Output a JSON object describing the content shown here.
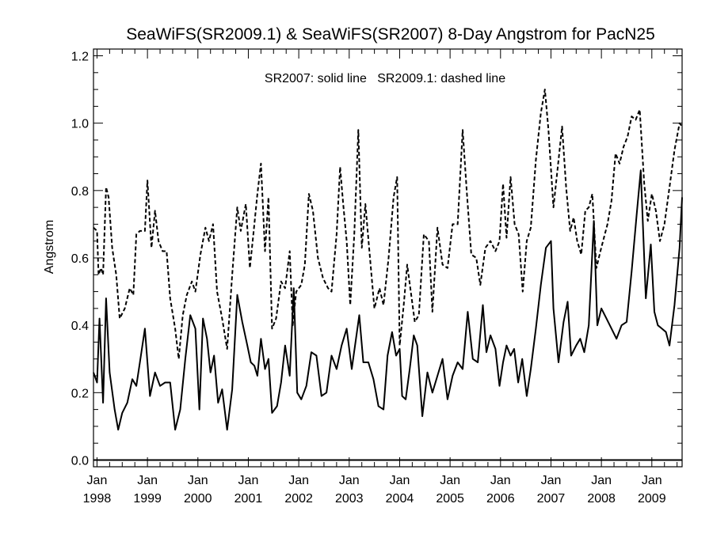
{
  "chart_data": {
    "type": "line",
    "title": "SeaWiFS(SR2009.1) & SeaWiFS(SR2007) 8-Day Angstrom for PacN25",
    "annotation": "SR2007: solid line   SR2009.1: dashed line",
    "xlabel": "",
    "ylabel": "Angstrom",
    "xlim": [
      1997.93,
      2009.6
    ],
    "ylim": [
      -0.02,
      1.22
    ],
    "yticks": [
      0.0,
      0.2,
      0.4,
      0.6,
      0.8,
      1.0,
      1.2
    ],
    "ytick_labels": [
      "0.0",
      "0.2",
      "0.4",
      "0.6",
      "0.8",
      "1.0",
      "1.2"
    ],
    "xticks": [
      1998,
      1999,
      2000,
      2001,
      2002,
      2003,
      2004,
      2005,
      2006,
      2007,
      2008,
      2009
    ],
    "xtick_month": "Jan",
    "xtick_years": [
      "1998",
      "1999",
      "2000",
      "2001",
      "2002",
      "2003",
      "2004",
      "2005",
      "2006",
      "2007",
      "2008",
      "2009"
    ],
    "series": [
      {
        "name": "SR2007",
        "style": "solid",
        "color": "#000000",
        "points": [
          [
            1997.93,
            0.26
          ],
          [
            1998.0,
            0.23
          ],
          [
            1998.05,
            0.42
          ],
          [
            1998.12,
            0.17
          ],
          [
            1998.18,
            0.48
          ],
          [
            1998.25,
            0.26
          ],
          [
            1998.35,
            0.15
          ],
          [
            1998.42,
            0.09
          ],
          [
            1998.5,
            0.14
          ],
          [
            1998.6,
            0.17
          ],
          [
            1998.7,
            0.24
          ],
          [
            1998.78,
            0.22
          ],
          [
            1998.85,
            0.29
          ],
          [
            1998.95,
            0.39
          ],
          [
            1999.05,
            0.19
          ],
          [
            1999.15,
            0.26
          ],
          [
            1999.25,
            0.22
          ],
          [
            1999.35,
            0.23
          ],
          [
            1999.45,
            0.23
          ],
          [
            1999.55,
            0.09
          ],
          [
            1999.65,
            0.15
          ],
          [
            1999.75,
            0.3
          ],
          [
            1999.85,
            0.43
          ],
          [
            1999.95,
            0.39
          ],
          [
            2000.03,
            0.15
          ],
          [
            2000.1,
            0.42
          ],
          [
            2000.18,
            0.36
          ],
          [
            2000.25,
            0.26
          ],
          [
            2000.32,
            0.31
          ],
          [
            2000.4,
            0.17
          ],
          [
            2000.48,
            0.21
          ],
          [
            2000.58,
            0.09
          ],
          [
            2000.68,
            0.21
          ],
          [
            2000.78,
            0.49
          ],
          [
            2000.88,
            0.41
          ],
          [
            2000.98,
            0.34
          ],
          [
            2001.05,
            0.29
          ],
          [
            2001.12,
            0.28
          ],
          [
            2001.18,
            0.25
          ],
          [
            2001.25,
            0.36
          ],
          [
            2001.33,
            0.27
          ],
          [
            2001.4,
            0.3
          ],
          [
            2001.47,
            0.14
          ],
          [
            2001.57,
            0.16
          ],
          [
            2001.65,
            0.23
          ],
          [
            2001.73,
            0.34
          ],
          [
            2001.82,
            0.25
          ],
          [
            2001.9,
            0.51
          ],
          [
            2001.97,
            0.2
          ],
          [
            2002.05,
            0.18
          ],
          [
            2002.15,
            0.22
          ],
          [
            2002.25,
            0.32
          ],
          [
            2002.35,
            0.31
          ],
          [
            2002.45,
            0.19
          ],
          [
            2002.55,
            0.2
          ],
          [
            2002.65,
            0.31
          ],
          [
            2002.75,
            0.27
          ],
          [
            2002.85,
            0.34
          ],
          [
            2002.95,
            0.39
          ],
          [
            2003.05,
            0.27
          ],
          [
            2003.2,
            0.43
          ],
          [
            2003.28,
            0.29
          ],
          [
            2003.38,
            0.29
          ],
          [
            2003.48,
            0.24
          ],
          [
            2003.58,
            0.16
          ],
          [
            2003.68,
            0.15
          ],
          [
            2003.76,
            0.31
          ],
          [
            2003.85,
            0.38
          ],
          [
            2003.93,
            0.31
          ],
          [
            2004.0,
            0.33
          ],
          [
            2004.05,
            0.19
          ],
          [
            2004.12,
            0.18
          ],
          [
            2004.2,
            0.27
          ],
          [
            2004.28,
            0.37
          ],
          [
            2004.35,
            0.34
          ],
          [
            2004.45,
            0.13
          ],
          [
            2004.55,
            0.26
          ],
          [
            2004.65,
            0.2
          ],
          [
            2004.75,
            0.25
          ],
          [
            2004.85,
            0.3
          ],
          [
            2004.95,
            0.18
          ],
          [
            2005.05,
            0.25
          ],
          [
            2005.15,
            0.29
          ],
          [
            2005.25,
            0.27
          ],
          [
            2005.35,
            0.44
          ],
          [
            2005.45,
            0.3
          ],
          [
            2005.55,
            0.29
          ],
          [
            2005.65,
            0.46
          ],
          [
            2005.72,
            0.32
          ],
          [
            2005.8,
            0.37
          ],
          [
            2005.9,
            0.33
          ],
          [
            2005.98,
            0.22
          ],
          [
            2006.05,
            0.29
          ],
          [
            2006.12,
            0.34
          ],
          [
            2006.2,
            0.31
          ],
          [
            2006.27,
            0.33
          ],
          [
            2006.35,
            0.23
          ],
          [
            2006.43,
            0.3
          ],
          [
            2006.52,
            0.19
          ],
          [
            2006.6,
            0.27
          ],
          [
            2006.7,
            0.39
          ],
          [
            2006.8,
            0.52
          ],
          [
            2006.9,
            0.63
          ],
          [
            2007.0,
            0.65
          ],
          [
            2007.05,
            0.45
          ],
          [
            2007.15,
            0.29
          ],
          [
            2007.25,
            0.41
          ],
          [
            2007.33,
            0.47
          ],
          [
            2007.4,
            0.31
          ],
          [
            2007.5,
            0.34
          ],
          [
            2007.58,
            0.36
          ],
          [
            2007.66,
            0.32
          ],
          [
            2007.75,
            0.4
          ],
          [
            2007.85,
            0.71
          ],
          [
            2007.92,
            0.4
          ],
          [
            2008.0,
            0.45
          ],
          [
            2008.1,
            0.42
          ],
          [
            2008.2,
            0.39
          ],
          [
            2008.3,
            0.36
          ],
          [
            2008.4,
            0.4
          ],
          [
            2008.5,
            0.41
          ],
          [
            2008.6,
            0.56
          ],
          [
            2008.7,
            0.73
          ],
          [
            2008.78,
            0.86
          ],
          [
            2008.88,
            0.48
          ],
          [
            2008.98,
            0.64
          ],
          [
            2009.05,
            0.44
          ],
          [
            2009.12,
            0.4
          ],
          [
            2009.2,
            0.39
          ],
          [
            2009.28,
            0.38
          ],
          [
            2009.35,
            0.34
          ],
          [
            2009.45,
            0.46
          ],
          [
            2009.55,
            0.63
          ],
          [
            2009.6,
            0.78
          ]
        ]
      },
      {
        "name": "SR2009.1",
        "style": "dashed",
        "color": "#000000",
        "points": [
          [
            1997.93,
            0.69
          ],
          [
            1998.0,
            0.68
          ],
          [
            1998.03,
            0.55
          ],
          [
            1998.08,
            0.57
          ],
          [
            1998.12,
            0.55
          ],
          [
            1998.18,
            0.81
          ],
          [
            1998.23,
            0.78
          ],
          [
            1998.3,
            0.63
          ],
          [
            1998.38,
            0.55
          ],
          [
            1998.45,
            0.42
          ],
          [
            1998.55,
            0.45
          ],
          [
            1998.65,
            0.51
          ],
          [
            1998.72,
            0.49
          ],
          [
            1998.78,
            0.67
          ],
          [
            1998.85,
            0.68
          ],
          [
            1998.95,
            0.68
          ],
          [
            1999.0,
            0.83
          ],
          [
            1999.08,
            0.63
          ],
          [
            1999.15,
            0.74
          ],
          [
            1999.22,
            0.65
          ],
          [
            1999.3,
            0.62
          ],
          [
            1999.38,
            0.62
          ],
          [
            1999.45,
            0.48
          ],
          [
            1999.55,
            0.39
          ],
          [
            1999.62,
            0.3
          ],
          [
            1999.7,
            0.43
          ],
          [
            1999.78,
            0.49
          ],
          [
            1999.88,
            0.53
          ],
          [
            1999.95,
            0.5
          ],
          [
            2000.05,
            0.61
          ],
          [
            2000.15,
            0.69
          ],
          [
            2000.22,
            0.65
          ],
          [
            2000.3,
            0.7
          ],
          [
            2000.38,
            0.5
          ],
          [
            2000.48,
            0.42
          ],
          [
            2000.58,
            0.33
          ],
          [
            2000.68,
            0.55
          ],
          [
            2000.78,
            0.75
          ],
          [
            2000.85,
            0.68
          ],
          [
            2000.95,
            0.76
          ],
          [
            2001.03,
            0.57
          ],
          [
            2001.1,
            0.67
          ],
          [
            2001.18,
            0.79
          ],
          [
            2001.25,
            0.88
          ],
          [
            2001.33,
            0.62
          ],
          [
            2001.4,
            0.78
          ],
          [
            2001.47,
            0.39
          ],
          [
            2001.55,
            0.42
          ],
          [
            2001.65,
            0.53
          ],
          [
            2001.73,
            0.51
          ],
          [
            2001.82,
            0.62
          ],
          [
            2001.88,
            0.4
          ],
          [
            2001.95,
            0.5
          ],
          [
            2002.05,
            0.52
          ],
          [
            2002.12,
            0.58
          ],
          [
            2002.2,
            0.79
          ],
          [
            2002.28,
            0.74
          ],
          [
            2002.38,
            0.6
          ],
          [
            2002.48,
            0.54
          ],
          [
            2002.58,
            0.51
          ],
          [
            2002.65,
            0.5
          ],
          [
            2002.75,
            0.67
          ],
          [
            2002.82,
            0.87
          ],
          [
            2002.88,
            0.76
          ],
          [
            2002.95,
            0.65
          ],
          [
            2003.02,
            0.46
          ],
          [
            2003.1,
            0.67
          ],
          [
            2003.18,
            0.98
          ],
          [
            2003.25,
            0.63
          ],
          [
            2003.32,
            0.76
          ],
          [
            2003.4,
            0.62
          ],
          [
            2003.5,
            0.45
          ],
          [
            2003.6,
            0.51
          ],
          [
            2003.68,
            0.46
          ],
          [
            2003.78,
            0.6
          ],
          [
            2003.88,
            0.78
          ],
          [
            2003.95,
            0.84
          ],
          [
            2004.0,
            0.34
          ],
          [
            2004.08,
            0.46
          ],
          [
            2004.15,
            0.58
          ],
          [
            2004.22,
            0.5
          ],
          [
            2004.3,
            0.41
          ],
          [
            2004.38,
            0.43
          ],
          [
            2004.48,
            0.67
          ],
          [
            2004.58,
            0.65
          ],
          [
            2004.65,
            0.44
          ],
          [
            2004.75,
            0.69
          ],
          [
            2004.85,
            0.58
          ],
          [
            2004.95,
            0.57
          ],
          [
            2005.05,
            0.7
          ],
          [
            2005.15,
            0.7
          ],
          [
            2005.25,
            0.98
          ],
          [
            2005.33,
            0.8
          ],
          [
            2005.42,
            0.61
          ],
          [
            2005.52,
            0.6
          ],
          [
            2005.6,
            0.52
          ],
          [
            2005.7,
            0.63
          ],
          [
            2005.8,
            0.65
          ],
          [
            2005.9,
            0.62
          ],
          [
            2005.98,
            0.65
          ],
          [
            2006.05,
            0.82
          ],
          [
            2006.12,
            0.66
          ],
          [
            2006.2,
            0.84
          ],
          [
            2006.28,
            0.7
          ],
          [
            2006.36,
            0.67
          ],
          [
            2006.44,
            0.5
          ],
          [
            2006.52,
            0.65
          ],
          [
            2006.6,
            0.69
          ],
          [
            2006.7,
            0.89
          ],
          [
            2006.8,
            1.03
          ],
          [
            2006.88,
            1.1
          ],
          [
            2006.95,
            0.98
          ],
          [
            2007.05,
            0.75
          ],
          [
            2007.15,
            0.89
          ],
          [
            2007.22,
            0.99
          ],
          [
            2007.3,
            0.81
          ],
          [
            2007.38,
            0.68
          ],
          [
            2007.45,
            0.72
          ],
          [
            2007.52,
            0.65
          ],
          [
            2007.6,
            0.61
          ],
          [
            2007.68,
            0.74
          ],
          [
            2007.75,
            0.75
          ],
          [
            2007.82,
            0.79
          ],
          [
            2007.9,
            0.57
          ],
          [
            2007.98,
            0.62
          ],
          [
            2008.05,
            0.66
          ],
          [
            2008.12,
            0.7
          ],
          [
            2008.2,
            0.77
          ],
          [
            2008.28,
            0.91
          ],
          [
            2008.36,
            0.88
          ],
          [
            2008.44,
            0.93
          ],
          [
            2008.52,
            0.96
          ],
          [
            2008.6,
            1.02
          ],
          [
            2008.68,
            1.01
          ],
          [
            2008.76,
            1.04
          ],
          [
            2008.85,
            0.82
          ],
          [
            2008.92,
            0.71
          ],
          [
            2009.0,
            0.79
          ],
          [
            2009.08,
            0.74
          ],
          [
            2009.16,
            0.65
          ],
          [
            2009.25,
            0.7
          ],
          [
            2009.35,
            0.81
          ],
          [
            2009.45,
            0.92
          ],
          [
            2009.55,
            1.0
          ],
          [
            2009.6,
            0.99
          ]
        ]
      }
    ],
    "zero_line": 0.0,
    "grid": false
  }
}
